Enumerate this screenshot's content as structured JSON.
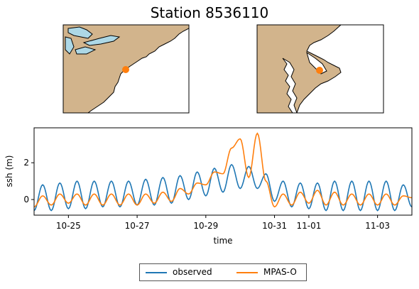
{
  "title": "Station 8536110",
  "colors": {
    "observed": "#1f77b4",
    "model": "#ff7f0e",
    "land": "#d2b48c",
    "water": "#add8e6",
    "ocean": "#ffffff"
  },
  "maps": [
    {
      "name": "regional map",
      "marker_color": "#ff7f0e"
    },
    {
      "name": "local map",
      "marker_color": "#ff7f0e"
    }
  ],
  "chart_data": {
    "type": "line",
    "title": "",
    "xlabel": "time",
    "ylabel": "ssh (m)",
    "x_type": "date",
    "xlim": [
      "10-24",
      "11-04"
    ],
    "ylim": [
      -0.85,
      3.9
    ],
    "xticks": [
      "10-25",
      "10-27",
      "10-29",
      "10-31",
      "11-01",
      "11-03"
    ],
    "yticks": [
      0,
      2
    ],
    "legend": {
      "placement": "bottom-center",
      "columns": 2
    },
    "series": [
      {
        "name": "observed",
        "x": [
          "10-24 00:00",
          "10-24 06:00",
          "10-24 12:00",
          "10-24 18:00",
          "10-25 00:00",
          "10-25 06:00",
          "10-25 12:00",
          "10-25 18:00",
          "10-26 00:00",
          "10-26 06:00",
          "10-26 12:00",
          "10-26 18:00",
          "10-27 00:00",
          "10-27 06:00",
          "10-27 12:00",
          "10-27 18:00",
          "10-28 00:00",
          "10-28 06:00",
          "10-28 12:00",
          "10-28 18:00",
          "10-29 00:00",
          "10-29 06:00",
          "10-29 12:00",
          "10-29 18:00",
          "10-30 00:00",
          "10-30 06:00",
          "10-30 12:00",
          "10-30 18:00",
          "10-31 00:00",
          "10-31 06:00",
          "10-31 12:00",
          "10-31 18:00",
          "11-01 00:00",
          "11-01 06:00",
          "11-01 12:00",
          "11-01 18:00",
          "11-02 00:00",
          "11-02 06:00",
          "11-02 12:00",
          "11-02 18:00",
          "11-03 00:00",
          "11-03 06:00",
          "11-03 12:00",
          "11-03 18:00",
          "11-04 00:00"
        ],
        "y": [
          -0.6,
          0.8,
          -0.6,
          0.9,
          -0.5,
          1.0,
          -0.5,
          1.0,
          -0.4,
          1.0,
          -0.4,
          1.0,
          -0.3,
          1.1,
          -0.3,
          1.2,
          -0.2,
          1.3,
          0.0,
          1.5,
          0.2,
          1.7,
          0.4,
          1.9,
          0.6,
          1.8,
          0.6,
          1.4,
          -0.1,
          1.0,
          -0.4,
          0.9,
          -0.5,
          0.9,
          -0.6,
          1.0,
          -0.6,
          1.0,
          -0.6,
          1.0,
          -0.6,
          1.0,
          -0.6,
          0.8,
          -0.4
        ]
      },
      {
        "name": "MPAS-O",
        "x": [
          "10-24 00:00",
          "10-24 06:00",
          "10-24 12:00",
          "10-24 18:00",
          "10-25 00:00",
          "10-25 06:00",
          "10-25 12:00",
          "10-25 18:00",
          "10-26 00:00",
          "10-26 06:00",
          "10-26 12:00",
          "10-26 18:00",
          "10-27 00:00",
          "10-27 06:00",
          "10-27 12:00",
          "10-27 18:00",
          "10-28 00:00",
          "10-28 06:00",
          "10-28 12:00",
          "10-28 18:00",
          "10-29 00:00",
          "10-29 06:00",
          "10-29 12:00",
          "10-29 18:00",
          "10-30 00:00",
          "10-30 06:00",
          "10-30 12:00",
          "10-30 18:00",
          "10-31 00:00",
          "10-31 06:00",
          "10-31 12:00",
          "10-31 18:00",
          "11-01 00:00",
          "11-01 06:00",
          "11-01 12:00",
          "11-01 18:00",
          "11-02 00:00",
          "11-02 06:00",
          "11-02 12:00",
          "11-02 18:00",
          "11-03 00:00",
          "11-03 06:00",
          "11-03 12:00",
          "11-03 18:00",
          "11-04 00:00"
        ],
        "y": [
          -0.4,
          0.2,
          -0.3,
          0.3,
          -0.2,
          0.3,
          -0.3,
          0.3,
          -0.3,
          0.3,
          -0.3,
          0.3,
          -0.3,
          0.3,
          -0.2,
          0.4,
          -0.1,
          0.6,
          0.3,
          0.9,
          0.8,
          1.5,
          1.4,
          2.8,
          3.3,
          1.2,
          3.6,
          1.0,
          -0.4,
          0.3,
          -0.3,
          0.4,
          -0.2,
          0.5,
          -0.3,
          0.4,
          -0.3,
          0.3,
          -0.3,
          0.3,
          -0.3,
          0.3,
          -0.3,
          0.2,
          0.1
        ]
      }
    ]
  }
}
